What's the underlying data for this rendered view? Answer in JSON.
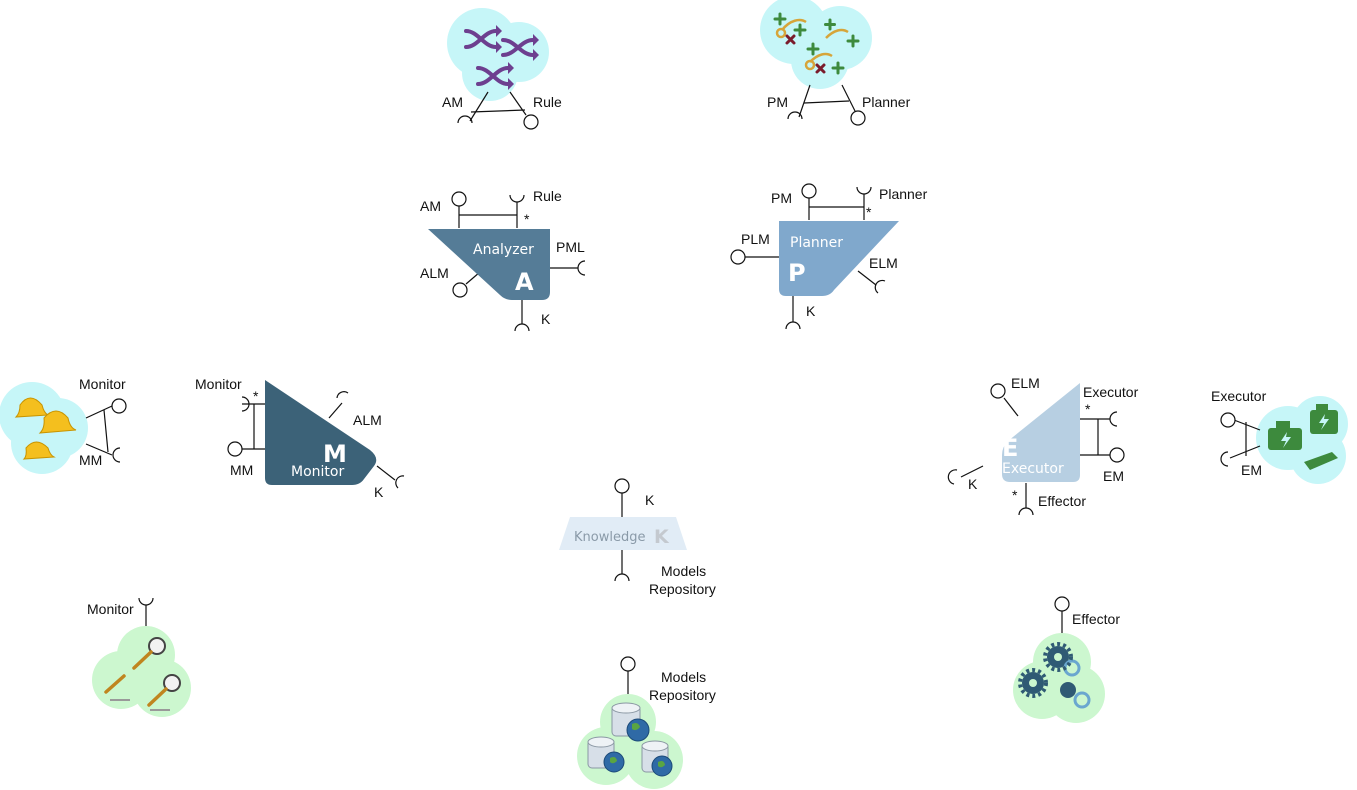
{
  "colors": {
    "analyzer": "#557c97",
    "planner": "#80a8cc",
    "monitor": "#3c6278",
    "executor": "#b7cfe2",
    "knowledge": "#e1ecf6",
    "cluster_cyan": "#c6f6f8",
    "cluster_cyan_inner": "#b4f0f2",
    "cluster_green": "#ccf7cf",
    "cluster_green_inner": "#bdf2c1"
  },
  "rule_icon": {
    "icon": "shuffle-arrows-icon",
    "labels": {
      "left": "AM",
      "right": "Rule"
    }
  },
  "planner_icon": {
    "icon": "route-plan-icon",
    "labels": {
      "left": "PM",
      "right": "Planner"
    }
  },
  "monitor_icon": {
    "icon": "alarm-bell-icon",
    "labels": {
      "top": "Monitor",
      "bottom": "MM"
    }
  },
  "executor_icon": {
    "icon": "engine-icon",
    "labels": {
      "top": "Executor",
      "bottom": "EM"
    }
  },
  "sensor_icon": {
    "icon": "magnifier-icon",
    "labels": {
      "top": "Monitor"
    }
  },
  "repository_icon": {
    "icon": "database-globe-icon",
    "labels": {
      "line1": "Models",
      "line2": "Repository"
    }
  },
  "effector_icon": {
    "icon": "gears-icon",
    "labels": {
      "top": "Effector"
    }
  },
  "analyzer": {
    "title": "Analyzer",
    "letter": "A",
    "ports": {
      "am": "AM",
      "rule": "Rule",
      "star": "*",
      "pml": "PML",
      "alm": "ALM",
      "k": "K"
    }
  },
  "planner": {
    "title": "Planner",
    "letter": "P",
    "ports": {
      "pm": "PM",
      "planner": "Planner",
      "star": "*",
      "plm": "PLM",
      "elm": "ELM",
      "k": "K"
    }
  },
  "monitor": {
    "title": "Monitor",
    "letter": "M",
    "ports": {
      "monitor": "Monitor",
      "star": "*",
      "mm": "MM",
      "alm": "ALM",
      "k": "K"
    }
  },
  "executor": {
    "title": "Executor",
    "letter": "E",
    "ports": {
      "elm": "ELM",
      "executor": "Executor",
      "star": "*",
      "em": "EM",
      "k": "K",
      "star2": "*",
      "effector": "Effector"
    }
  },
  "knowledge": {
    "title": "Knowledge",
    "letter": "K",
    "ports": {
      "k": "K",
      "models": "Models",
      "repository": "Repository"
    }
  }
}
